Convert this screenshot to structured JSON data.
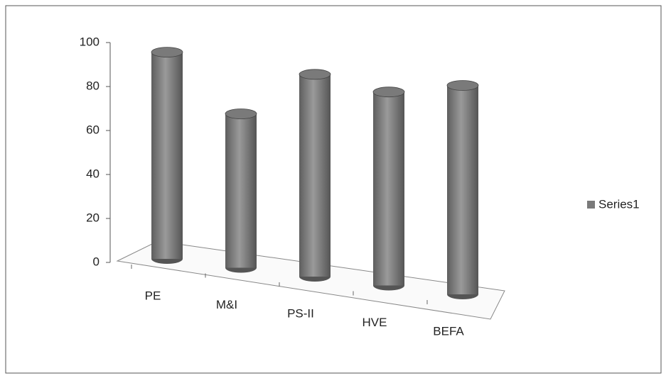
{
  "chart_data": {
    "type": "bar",
    "categories": [
      "PE",
      "M&I",
      "PS-II",
      "HVE",
      "BEFA"
    ],
    "series": [
      {
        "name": "Series1",
        "color": "#7a7a7a",
        "values": [
          94,
          70,
          92,
          88,
          95
        ]
      }
    ],
    "ylim": [
      0,
      100
    ],
    "yticks": [
      0,
      20,
      40,
      60,
      80,
      100
    ],
    "legend": "right"
  }
}
